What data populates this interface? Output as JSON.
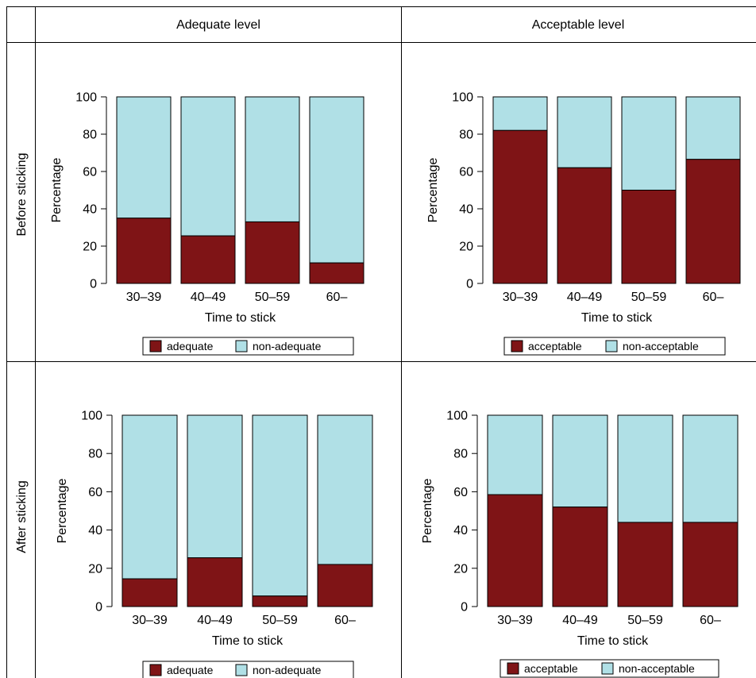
{
  "columns": [
    "Adequate level",
    "Acceptable level"
  ],
  "rows": [
    "Before sticking",
    "After sticking"
  ],
  "colors": {
    "positive": "#7f1416",
    "negative": "#b0e0e6",
    "stroke": "#000000"
  },
  "chart_data": [
    {
      "type": "bar",
      "stacked": true,
      "categories": [
        "30–39",
        "40–49",
        "50–59",
        "60–"
      ],
      "series": [
        {
          "name": "adequate",
          "values": [
            35,
            25.5,
            33,
            11
          ]
        },
        {
          "name": "non-adequate",
          "values": [
            65,
            74.5,
            67,
            89
          ]
        }
      ],
      "xlabel": "Time to stick",
      "ylabel": "Percentage",
      "ylim": [
        0,
        100
      ],
      "yticks": [
        "0",
        "20",
        "40",
        "60",
        "80",
        "100"
      ],
      "legend": [
        "adequate",
        "non-adequate"
      ]
    },
    {
      "type": "bar",
      "stacked": true,
      "categories": [
        "30–39",
        "40–49",
        "50–59",
        "60–"
      ],
      "series": [
        {
          "name": "acceptable",
          "values": [
            82,
            62,
            50,
            66.5
          ]
        },
        {
          "name": "non-acceptable",
          "values": [
            18,
            38,
            50,
            33.5
          ]
        }
      ],
      "xlabel": "Time to stick",
      "ylabel": "Percentage",
      "ylim": [
        0,
        100
      ],
      "yticks": [
        "0",
        "20",
        "40",
        "60",
        "80",
        "100"
      ],
      "legend": [
        "acceptable",
        "non-acceptable"
      ]
    },
    {
      "type": "bar",
      "stacked": true,
      "categories": [
        "30–39",
        "40–49",
        "50–59",
        "60–"
      ],
      "series": [
        {
          "name": "adequate",
          "values": [
            14.5,
            25.5,
            5.5,
            22
          ]
        },
        {
          "name": "non-adequate",
          "values": [
            85.5,
            74.5,
            94.5,
            78
          ]
        }
      ],
      "xlabel": "Time to stick",
      "ylabel": "Percentage",
      "ylim": [
        0,
        100
      ],
      "yticks": [
        "0",
        "20",
        "40",
        "60",
        "80",
        "100"
      ],
      "legend": [
        "adequate",
        "non-adequate"
      ]
    },
    {
      "type": "bar",
      "stacked": true,
      "categories": [
        "30–39",
        "40–49",
        "50–59",
        "60–"
      ],
      "series": [
        {
          "name": "acceptable",
          "values": [
            58.5,
            52,
            44,
            44
          ]
        },
        {
          "name": "non-acceptable",
          "values": [
            41.5,
            48,
            56,
            56
          ]
        }
      ],
      "xlabel": "Time to stick",
      "ylabel": "Percentage",
      "ylim": [
        0,
        100
      ],
      "yticks": [
        "0",
        "20",
        "40",
        "60",
        "80",
        "100"
      ],
      "legend": [
        "acceptable",
        "non-acceptable"
      ]
    }
  ]
}
